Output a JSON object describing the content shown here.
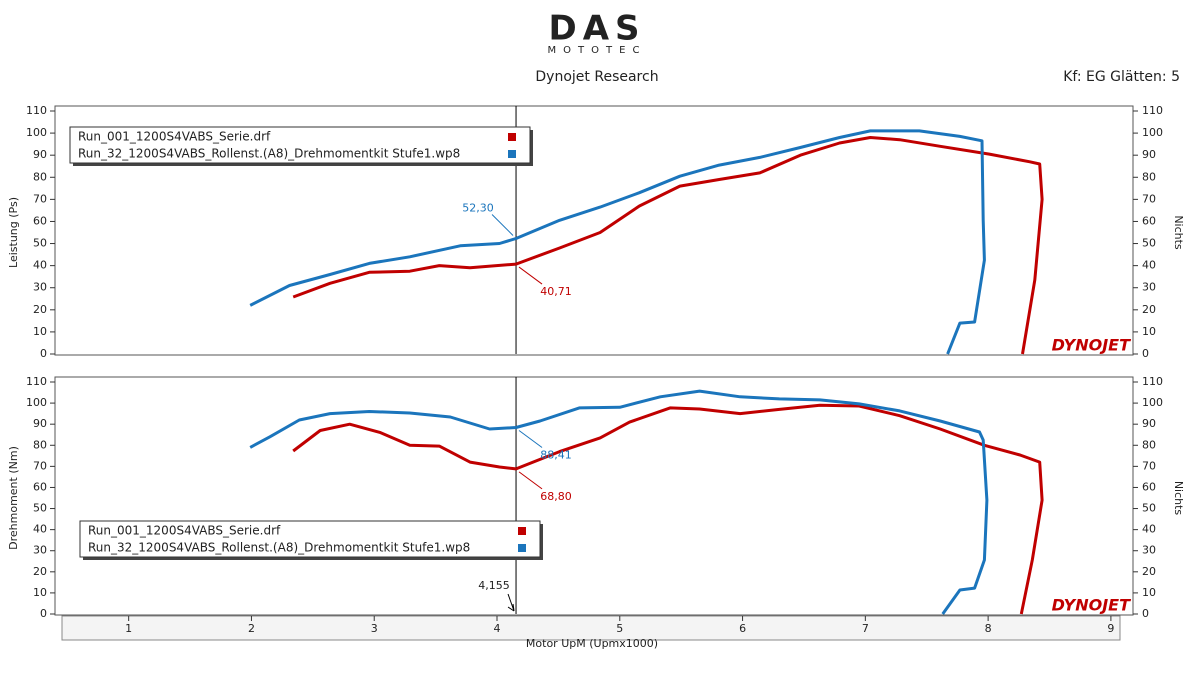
{
  "header": {
    "logo_subtitle": "MOTOTEC",
    "title": "Dynojet Research",
    "settings": "Kf: EG Glätten: 5"
  },
  "chart_data": [
    {
      "type": "line",
      "y_label": "Leistung (Ps)",
      "y2_label": "Nichts",
      "watermark": "DYNOJET",
      "xlim": [
        0.4,
        9.18
      ],
      "ylim": [
        0,
        110
      ],
      "yticks": [
        0,
        10,
        20,
        30,
        40,
        50,
        60,
        70,
        80,
        90,
        100,
        110
      ],
      "y2lim": [
        0,
        110
      ],
      "y2ticks": [
        0,
        10,
        20,
        30,
        40,
        50,
        60,
        70,
        80,
        90,
        100,
        110
      ],
      "legend": "upper-left",
      "cursor": {
        "value": 4.155
      },
      "series": [
        {
          "name": "Run_001_1200S4VABS_Serie.drf",
          "color": "#c00000",
          "x": [
            2.34,
            2.64,
            2.96,
            3.29,
            3.53,
            3.78,
            4.155,
            4.51,
            4.84,
            5.16,
            5.49,
            5.81,
            6.14,
            6.47,
            6.79,
            7.04,
            7.28,
            7.61,
            8.01,
            8.34,
            8.42,
            8.44,
            8.38,
            8.28
          ],
          "values": [
            25.8,
            32,
            37,
            37.5,
            40,
            39,
            40.71,
            48,
            55,
            67,
            76,
            79,
            82,
            90,
            95.5,
            98,
            97,
            94,
            90.5,
            87,
            86,
            70,
            33.5,
            0
          ],
          "cursor_value": 40.71,
          "cursor_label": "40,71"
        },
        {
          "name": "Run_32_1200S4VABS_Rollenst.(A8)_Drehmomentkit Stufe1.wp8",
          "color": "#1b75bc",
          "x": [
            1.99,
            2.31,
            2.64,
            2.96,
            3.29,
            3.7,
            4.02,
            4.155,
            4.51,
            4.84,
            5.16,
            5.49,
            5.81,
            6.14,
            6.47,
            6.79,
            7.04,
            7.44,
            7.77,
            7.95,
            7.96,
            7.97,
            7.89,
            7.77,
            7.67
          ],
          "values": [
            22,
            31,
            36,
            41,
            44,
            49,
            50,
            52.3,
            60.5,
            66.5,
            73,
            80.5,
            85.5,
            89,
            93.5,
            98,
            101,
            101,
            98.5,
            96.5,
            60.5,
            42.5,
            14.5,
            14,
            0
          ],
          "cursor_value": 52.3,
          "cursor_label": "52,30"
        }
      ]
    },
    {
      "type": "line",
      "y_label": "Drehmoment (Nm)",
      "y2_label": "Nichts",
      "watermark": "DYNOJET",
      "x_label": "Motor UpM (Upmx1000)",
      "xlim": [
        0.4,
        9.18
      ],
      "xticks": [
        1,
        2,
        3,
        4,
        5,
        6,
        7,
        8,
        9
      ],
      "ylim": [
        0,
        110
      ],
      "yticks": [
        0,
        10,
        20,
        30,
        40,
        50,
        60,
        70,
        80,
        90,
        100,
        110
      ],
      "y2lim": [
        0,
        110
      ],
      "y2ticks": [
        0,
        10,
        20,
        30,
        40,
        50,
        60,
        70,
        80,
        90,
        100,
        110
      ],
      "legend": "lower-left",
      "cursor": {
        "value": 4.155,
        "label": "4,155"
      },
      "series": [
        {
          "name": "Run_001_1200S4VABS_Serie.drf",
          "color": "#c00000",
          "x": [
            2.34,
            2.56,
            2.8,
            3.05,
            3.29,
            3.53,
            3.78,
            4.02,
            4.155,
            4.51,
            4.84,
            5.08,
            5.41,
            5.65,
            5.98,
            6.3,
            6.63,
            6.95,
            7.28,
            7.61,
            7.97,
            8.26,
            8.42,
            8.44,
            8.36,
            8.27
          ],
          "values": [
            77.3,
            87,
            90,
            86,
            80,
            79.6,
            72,
            69.7,
            68.8,
            77,
            83.5,
            91,
            97.7,
            97.2,
            95,
            97,
            99,
            98.6,
            94,
            87.7,
            80,
            75.4,
            72,
            54,
            25.6,
            0
          ],
          "cursor_value": 68.8,
          "cursor_label": "68,80"
        },
        {
          "name": "Run_32_1200S4VABS_Rollenst.(A8)_Drehmomentkit Stufe1.wp8",
          "color": "#1b75bc",
          "x": [
            1.99,
            2.15,
            2.39,
            2.64,
            2.96,
            3.29,
            3.62,
            3.94,
            4.155,
            4.35,
            4.67,
            5.0,
            5.33,
            5.65,
            5.98,
            6.3,
            6.63,
            6.95,
            7.28,
            7.61,
            7.93,
            7.96,
            7.99,
            7.97,
            7.89,
            7.77,
            7.63
          ],
          "values": [
            79,
            84,
            92,
            95,
            96,
            95.3,
            93.4,
            87.7,
            88.41,
            91.5,
            97.7,
            98,
            103,
            105.7,
            103,
            102,
            101.5,
            99.6,
            96.3,
            91.5,
            86.3,
            82.5,
            54,
            25.6,
            12.3,
            11.4,
            0
          ],
          "cursor_value": 88.41,
          "cursor_label": "88,41"
        }
      ]
    }
  ]
}
